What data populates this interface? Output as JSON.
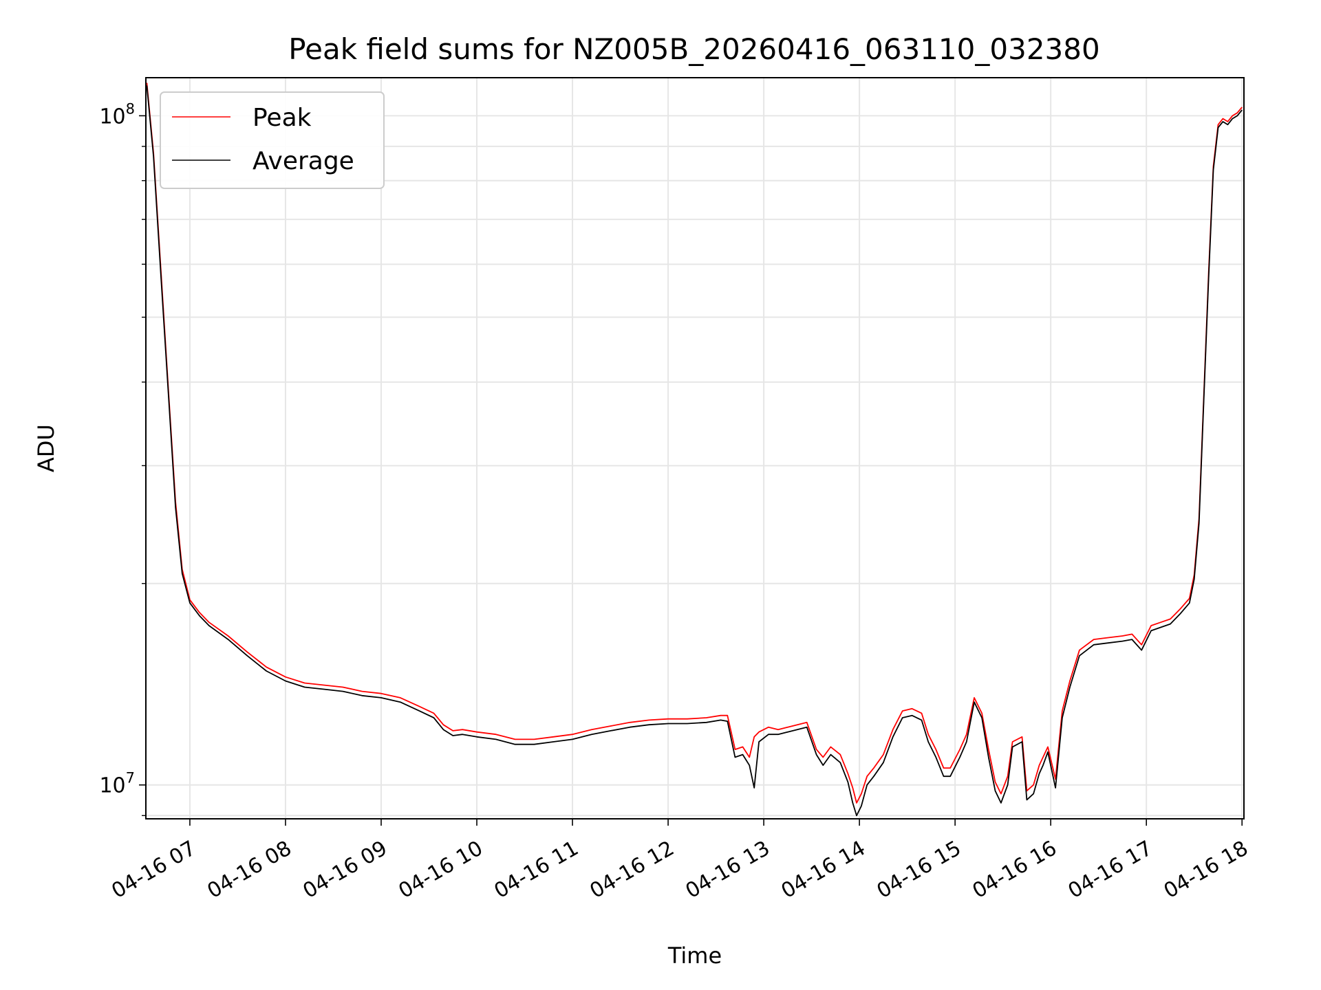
{
  "chart_data": {
    "type": "line",
    "title": "Peak field sums for NZ005B_20260416_063110_032380",
    "xlabel": "Time",
    "ylabel": "ADU",
    "yscale": "log",
    "xlim": [
      6.54,
      18.02
    ],
    "ylim": [
      8900000,
      114000000
    ],
    "grid": true,
    "legend_position": "top-left",
    "x_ticks": [
      {
        "value": 7,
        "label": "04-16 07"
      },
      {
        "value": 8,
        "label": "04-16 08"
      },
      {
        "value": 9,
        "label": "04-16 09"
      },
      {
        "value": 10,
        "label": "04-16 10"
      },
      {
        "value": 11,
        "label": "04-16 11"
      },
      {
        "value": 12,
        "label": "04-16 12"
      },
      {
        "value": 13,
        "label": "04-16 13"
      },
      {
        "value": 14,
        "label": "04-16 14"
      },
      {
        "value": 15,
        "label": "04-16 15"
      },
      {
        "value": 16,
        "label": "04-16 16"
      },
      {
        "value": 17,
        "label": "04-16 17"
      },
      {
        "value": 18,
        "label": "04-16 18"
      }
    ],
    "y_major_ticks": [
      {
        "value": 10000000,
        "base": "10",
        "exp": "7"
      },
      {
        "value": 100000000,
        "base": "10",
        "exp": "8"
      }
    ],
    "y_minor_ticks": [
      9000000,
      20000000,
      30000000,
      40000000,
      50000000,
      60000000,
      70000000,
      80000000,
      90000000
    ],
    "series": [
      {
        "name": "Peak",
        "color": "#ff0000",
        "x": [
          6.55,
          6.62,
          6.7,
          6.78,
          6.85,
          6.92,
          7.0,
          7.1,
          7.2,
          7.4,
          7.6,
          7.8,
          8.0,
          8.2,
          8.4,
          8.6,
          8.8,
          9.0,
          9.2,
          9.4,
          9.55,
          9.65,
          9.75,
          9.85,
          10.0,
          10.2,
          10.4,
          10.6,
          10.8,
          11.0,
          11.2,
          11.4,
          11.6,
          11.8,
          12.0,
          12.2,
          12.4,
          12.55,
          12.62,
          12.7,
          12.78,
          12.85,
          12.9,
          12.95,
          13.05,
          13.15,
          13.25,
          13.35,
          13.45,
          13.55,
          13.62,
          13.7,
          13.8,
          13.88,
          13.93,
          13.97,
          14.02,
          14.08,
          14.15,
          14.25,
          14.35,
          14.45,
          14.55,
          14.65,
          14.72,
          14.8,
          14.88,
          14.95,
          15.05,
          15.12,
          15.2,
          15.28,
          15.35,
          15.42,
          15.48,
          15.55,
          15.6,
          15.7,
          15.75,
          15.82,
          15.88,
          15.92,
          15.97,
          16.05,
          16.12,
          16.2,
          16.3,
          16.45,
          16.6,
          16.75,
          16.85,
          16.95,
          17.05,
          17.15,
          17.25,
          17.35,
          17.45,
          17.5,
          17.55,
          17.6,
          17.65,
          17.7,
          17.75,
          17.8,
          17.85,
          17.9,
          17.95,
          18.0
        ],
        "y": [
          112000000,
          88000000,
          58000000,
          38000000,
          26500000,
          21000000,
          18900000,
          18100000,
          17500000,
          16700000,
          15800000,
          15000000,
          14500000,
          14200000,
          14100000,
          14000000,
          13800000,
          13700000,
          13500000,
          13100000,
          12800000,
          12300000,
          12050000,
          12100000,
          12000000,
          11900000,
          11700000,
          11700000,
          11800000,
          11900000,
          12100000,
          12250000,
          12400000,
          12500000,
          12550000,
          12550000,
          12600000,
          12700000,
          12700000,
          11300000,
          11400000,
          11000000,
          11800000,
          12000000,
          12200000,
          12100000,
          12200000,
          12300000,
          12400000,
          11300000,
          11000000,
          11400000,
          11100000,
          10400000,
          9900000,
          9400000,
          9700000,
          10300000,
          10600000,
          11100000,
          12100000,
          12900000,
          13000000,
          12800000,
          11900000,
          11300000,
          10600000,
          10600000,
          11300000,
          11900000,
          13500000,
          12800000,
          11300000,
          10100000,
          9700000,
          10300000,
          11600000,
          11800000,
          9800000,
          10000000,
          10700000,
          11000000,
          11400000,
          10200000,
          12900000,
          14300000,
          15900000,
          16500000,
          16600000,
          16700000,
          16800000,
          16200000,
          17300000,
          17500000,
          17700000,
          18300000,
          19000000,
          20600000,
          25000000,
          38000000,
          58000000,
          84000000,
          97000000,
          99000000,
          98000000,
          100000000,
          101000000,
          103000000
        ]
      },
      {
        "name": "Average",
        "color": "#000000",
        "x": [
          6.55,
          6.62,
          6.7,
          6.78,
          6.85,
          6.92,
          7.0,
          7.1,
          7.2,
          7.4,
          7.6,
          7.8,
          8.0,
          8.2,
          8.4,
          8.6,
          8.8,
          9.0,
          9.2,
          9.4,
          9.55,
          9.65,
          9.75,
          9.85,
          10.0,
          10.2,
          10.4,
          10.6,
          10.8,
          11.0,
          11.2,
          11.4,
          11.6,
          11.8,
          12.0,
          12.2,
          12.4,
          12.55,
          12.62,
          12.7,
          12.78,
          12.85,
          12.9,
          12.95,
          13.05,
          13.15,
          13.25,
          13.35,
          13.45,
          13.55,
          13.62,
          13.7,
          13.8,
          13.88,
          13.93,
          13.97,
          14.02,
          14.08,
          14.15,
          14.25,
          14.35,
          14.45,
          14.55,
          14.65,
          14.72,
          14.8,
          14.88,
          14.95,
          15.05,
          15.12,
          15.2,
          15.28,
          15.35,
          15.42,
          15.48,
          15.55,
          15.6,
          15.7,
          15.75,
          15.82,
          15.88,
          15.92,
          15.97,
          16.05,
          16.12,
          16.2,
          16.3,
          16.45,
          16.6,
          16.75,
          16.85,
          16.95,
          17.05,
          17.15,
          17.25,
          17.35,
          17.45,
          17.5,
          17.55,
          17.6,
          17.65,
          17.7,
          17.75,
          17.8,
          17.85,
          17.9,
          17.95,
          18.0
        ],
        "y": [
          111000000,
          87000000,
          57000000,
          37500000,
          26000000,
          20700000,
          18700000,
          17900000,
          17300000,
          16500000,
          15600000,
          14800000,
          14300000,
          14000000,
          13900000,
          13800000,
          13600000,
          13500000,
          13300000,
          12900000,
          12600000,
          12100000,
          11850000,
          11900000,
          11800000,
          11700000,
          11500000,
          11500000,
          11600000,
          11700000,
          11900000,
          12050000,
          12200000,
          12300000,
          12350000,
          12350000,
          12400000,
          12500000,
          12450000,
          11000000,
          11100000,
          10700000,
          9900000,
          11600000,
          11900000,
          11900000,
          12000000,
          12100000,
          12200000,
          11100000,
          10700000,
          11100000,
          10800000,
          10100000,
          9400000,
          9000000,
          9300000,
          10000000,
          10300000,
          10800000,
          11800000,
          12600000,
          12700000,
          12500000,
          11600000,
          11000000,
          10300000,
          10300000,
          11000000,
          11600000,
          13300000,
          12600000,
          11000000,
          9800000,
          9400000,
          10000000,
          11400000,
          11600000,
          9500000,
          9700000,
          10400000,
          10700000,
          11200000,
          9900000,
          12600000,
          14000000,
          15600000,
          16200000,
          16300000,
          16400000,
          16500000,
          15900000,
          17000000,
          17200000,
          17400000,
          18000000,
          18700000,
          20300000,
          24600000,
          37500000,
          57000000,
          83000000,
          96000000,
          98000000,
          97000000,
          99000000,
          100000000,
          102000000
        ]
      }
    ]
  }
}
